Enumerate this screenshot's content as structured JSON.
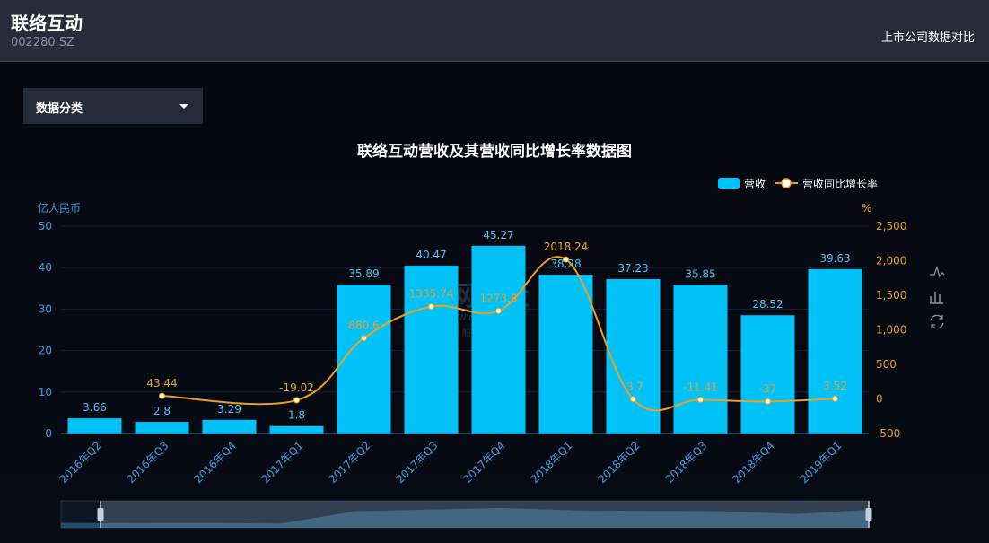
{
  "header": {
    "company_name": "联络互动",
    "stock_code": "002280.SZ",
    "compare_link": "上市公司数据对比"
  },
  "filter": {
    "dropdown_label": "数据分类"
  },
  "watermark": {
    "text": "网经社",
    "url": "WWW.100EC.CN",
    "tagline": "网 络 经 济 服 务 平 台"
  },
  "colors": {
    "bar": "#00c2f9",
    "line": "#f0a020",
    "left_axis": "#3aa0e0",
    "right_axis": "#e8a030"
  },
  "toolbox": [
    "line-chart-icon",
    "bar-chart-icon",
    "refresh-icon"
  ],
  "chart_data": {
    "type": "bar",
    "title": "联络互动营收及其营收同比增长率数据图",
    "categories": [
      "2016年Q2",
      "2016年Q3",
      "2016年Q4",
      "2017年Q1",
      "2017年Q2",
      "2017年Q3",
      "2017年Q4",
      "2018年Q1",
      "2018年Q2",
      "2018年Q3",
      "2018年Q4",
      "2019年Q1"
    ],
    "series": [
      {
        "name": "营收",
        "type": "bar",
        "axis": "left",
        "values": [
          3.66,
          2.8,
          3.29,
          1.8,
          35.89,
          40.47,
          45.27,
          38.28,
          37.23,
          35.85,
          28.52,
          39.63
        ]
      },
      {
        "name": "营收同比增长率",
        "type": "line",
        "axis": "right",
        "values": [
          null,
          43.44,
          null,
          -19.02,
          880.6,
          1335.74,
          1273.8,
          2018.24,
          -3.7,
          -11.41,
          -37,
          3.52
        ]
      }
    ],
    "left_axis": {
      "label": "亿人民币",
      "ticks": [
        "0",
        "10",
        "20",
        "30",
        "40",
        "50"
      ],
      "ylim": [
        0,
        50
      ]
    },
    "right_axis": {
      "label": "%",
      "ticks": [
        "-500",
        "0",
        "500",
        "1,000",
        "1,500",
        "2,000",
        "2,500"
      ],
      "ylim": [
        -500,
        2500
      ]
    },
    "bar_labels": [
      "3.66",
      "2.8",
      "3.29",
      "1.8",
      "35.89",
      "40.47",
      "45.27",
      "38.28",
      "37.23",
      "35.85",
      "28.52",
      "39.63"
    ],
    "line_labels": [
      "",
      "43.44",
      "",
      "-19.02",
      "880.6",
      "1335.74",
      "1273.8",
      "2018.24",
      "-3.7",
      "-11.41",
      "-37",
      "3.52"
    ],
    "legend_position": "top-right",
    "grid": true
  }
}
